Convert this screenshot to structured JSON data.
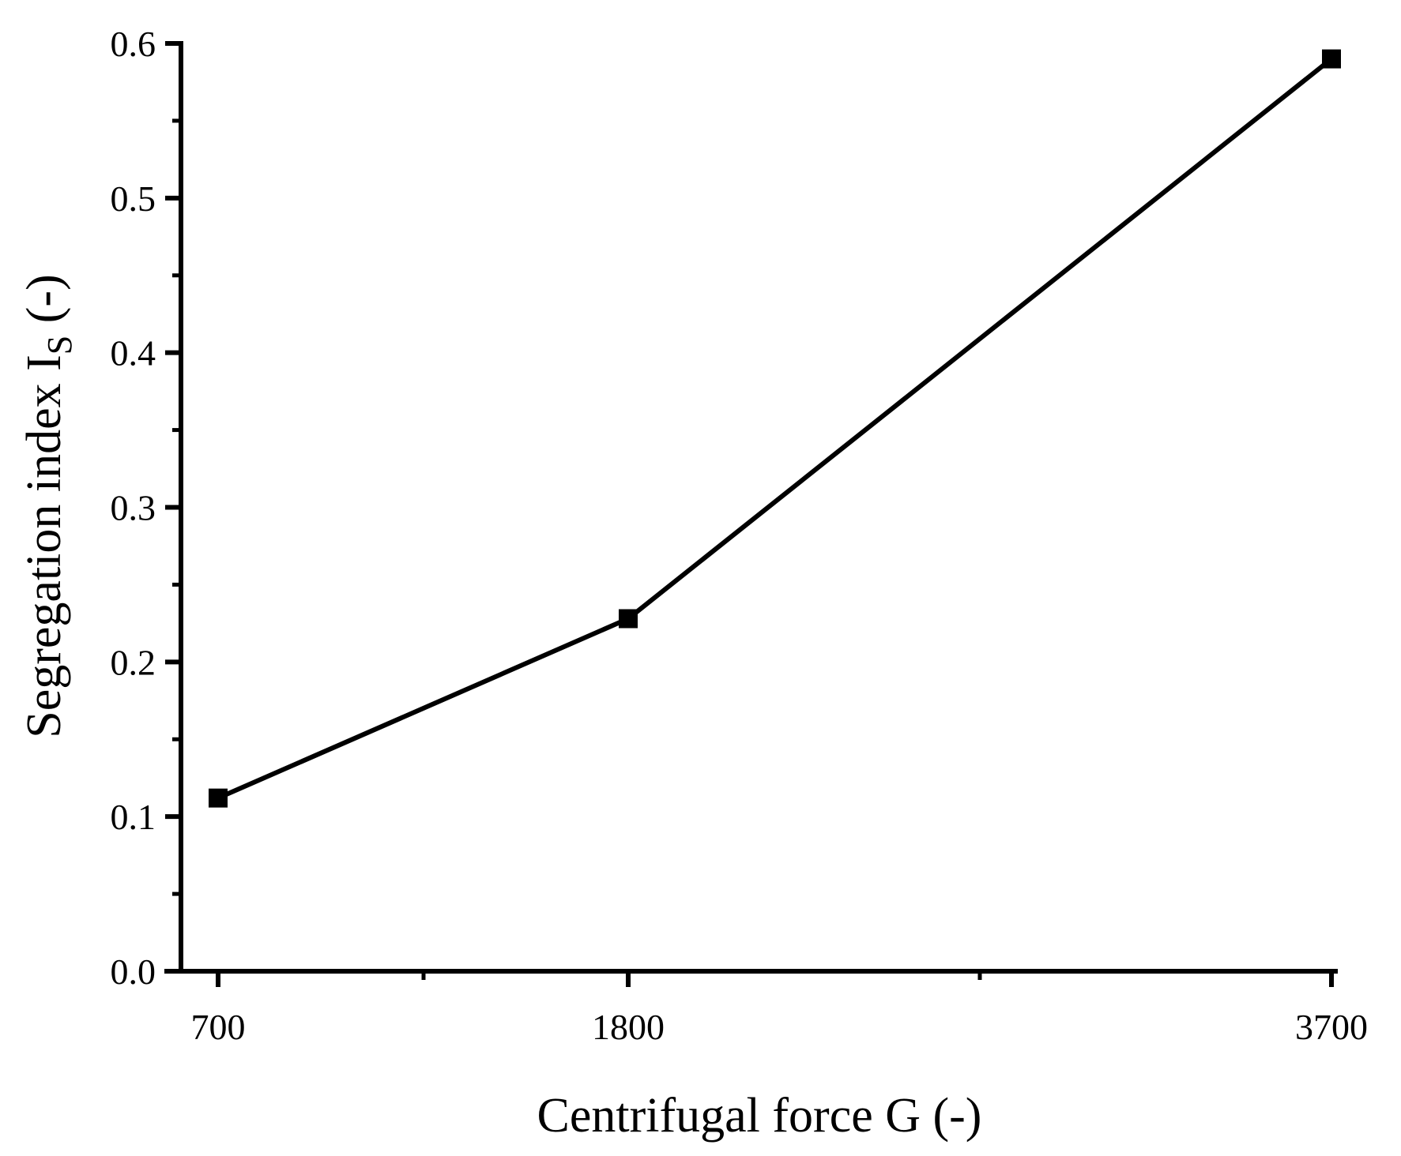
{
  "chart_data": {
    "type": "line",
    "title": "",
    "x": [
      "700",
      "1800",
      "3700"
    ],
    "series": [
      {
        "values": [
          0.112,
          0.228,
          0.59
        ]
      }
    ],
    "xlabel": "Centrifugal force G (-)",
    "ylabel": {
      "main": "Segregation index I",
      "subscript": "S",
      "unit": " (-)"
    },
    "ylim": [
      0.0,
      0.6
    ],
    "yticks": [
      "0.0",
      "0.1",
      "0.2",
      "0.3",
      "0.4",
      "0.5",
      "0.6"
    ],
    "xticks": [
      "700",
      "1800",
      "3700"
    ],
    "marker": "square",
    "grid": false,
    "legend": "none",
    "line_color": "#000000"
  }
}
